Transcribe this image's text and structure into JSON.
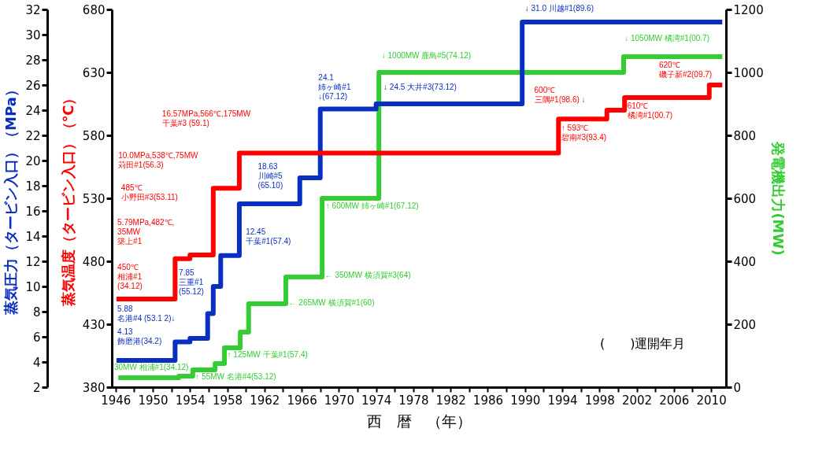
{
  "chart_data": {
    "type": "step",
    "xlabel": "西　暦　（年）",
    "ylabel": "蒸気温度（タービン入口）（℃）",
    "y2label": "蒸気圧力（タービン入口）（MPa）",
    "y3label": "発電機出力(MW)",
    "xlim": [
      1945.6,
      2011.6
    ],
    "xticks": [
      1946,
      {
        "value": 1948,
        "label": null
      },
      1950,
      {
        "value": 1952,
        "label": null
      },
      1954,
      {
        "value": 1956,
        "label": null
      },
      1958,
      {
        "value": 1960,
        "label": null
      },
      1962,
      {
        "value": 1964,
        "label": null
      },
      1966,
      {
        "value": 1968,
        "label": null
      },
      1970,
      {
        "value": 1972,
        "label": null
      },
      1974,
      {
        "value": 1976,
        "label": null
      },
      1978,
      {
        "value": 1980,
        "label": null
      },
      1982,
      {
        "value": 1984,
        "label": null
      },
      1986,
      {
        "value": 1988,
        "label": null
      },
      1990,
      {
        "value": 1992,
        "label": null
      },
      1994,
      {
        "value": 1996,
        "label": null
      },
      1998,
      {
        "value": 2000,
        "label": null
      },
      2002,
      {
        "value": 2004,
        "label": null
      },
      2006,
      {
        "value": 2008,
        "label": null
      },
      2010
    ],
    "ylim": [
      380,
      680
    ],
    "yticks": [
      380,
      430,
      480,
      530,
      580,
      630,
      680
    ],
    "y2lim": [
      2,
      32
    ],
    "y2ticks": [
      2,
      4,
      6,
      8,
      10,
      12,
      14,
      16,
      18,
      20,
      22,
      24,
      26,
      28,
      30,
      32
    ],
    "y3lim": [
      0,
      1200
    ],
    "y3ticks": [
      0,
      200,
      400,
      600,
      800,
      1000,
      1200
    ],
    "series": [
      {
        "color": "#33cc33",
        "axis": "y3",
        "x": [
          1946.3,
          1952.8,
          1954.3,
          1956.7,
          1957.7,
          1959.4,
          1960.3,
          1964.3,
          1968.2,
          1974.3,
          2000.6,
          2011.2
        ],
        "values": [
          30,
          35,
          55,
          75,
          125,
          175,
          265,
          350,
          600,
          1000,
          1050,
          1050
        ]
      },
      {
        "color": "#0a2fc0",
        "axis": "y2",
        "x": [
          1946.1,
          1952.4,
          1954.0,
          1955.9,
          1956.5,
          1957.3,
          1959.3,
          1965.8,
          1968.0,
          1974.0,
          1989.7,
          2011.2
        ],
        "values": [
          4.13,
          5.6,
          5.88,
          7.85,
          10.0,
          12.45,
          16.57,
          18.63,
          24.1,
          24.5,
          31.0,
          31.0
        ]
      },
      {
        "color": "#ff0000",
        "x": [
          1946.1,
          1952.4,
          1954.0,
          1956.5,
          1959.3,
          1993.6,
          1998.8,
          2000.7,
          2009.8,
          2011.2
        ],
        "values": [
          450,
          482,
          485,
          538,
          566,
          593,
          600,
          610,
          620,
          620
        ]
      }
    ],
    "annotations": [
      "450℃\n相浦#1\n(34.12)",
      "5.79MPa,482℃,\n35MW\n築上#1",
      "485℃\n小野田#3(53.11)",
      "10.0MPa,538℃,75MW\n苅田#1(56.3)",
      "16.57MPa,566℃,175MW\n千葉#3 (59.1)",
      "600℃\n三隅#1(98.6) ↓",
      "↑ 593℃\n碧南#3(93.4)",
      "610℃\n橘湾#1(00.7)",
      "620℃\n磯子新#2(09.7)",
      "4.13\n飾磨港(34.2)",
      "5.88\n名港#4 (53.1 2)↓",
      "7.85\n三重#1\n(55.12)",
      "12.45\n千葉#1(57.4)",
      "18.63\n川崎#5\n(65.10)",
      "24.1\n姉ヶ崎#1\n↓(67.12)",
      "↓ 24.5 大井#3(73.12)",
      "↓ 31.0 川越#1(89.6)",
      "30MW 相浦#1(34.12)",
      "↑ 55MW 名港#4(53.12)",
      "↑ 125MW 千葉#1(57.4)",
      "← 265MW 横須賀#1(60)",
      "← 350MW 横須賀#3(64)",
      "↑ 600MW 姉ヶ崎#1(67.12)",
      "↓ 1000MW 鹿島#5(74.12)",
      "↓ 1050MW 橘湾#1(00.7)",
      "(　　)運開年月"
    ]
  }
}
